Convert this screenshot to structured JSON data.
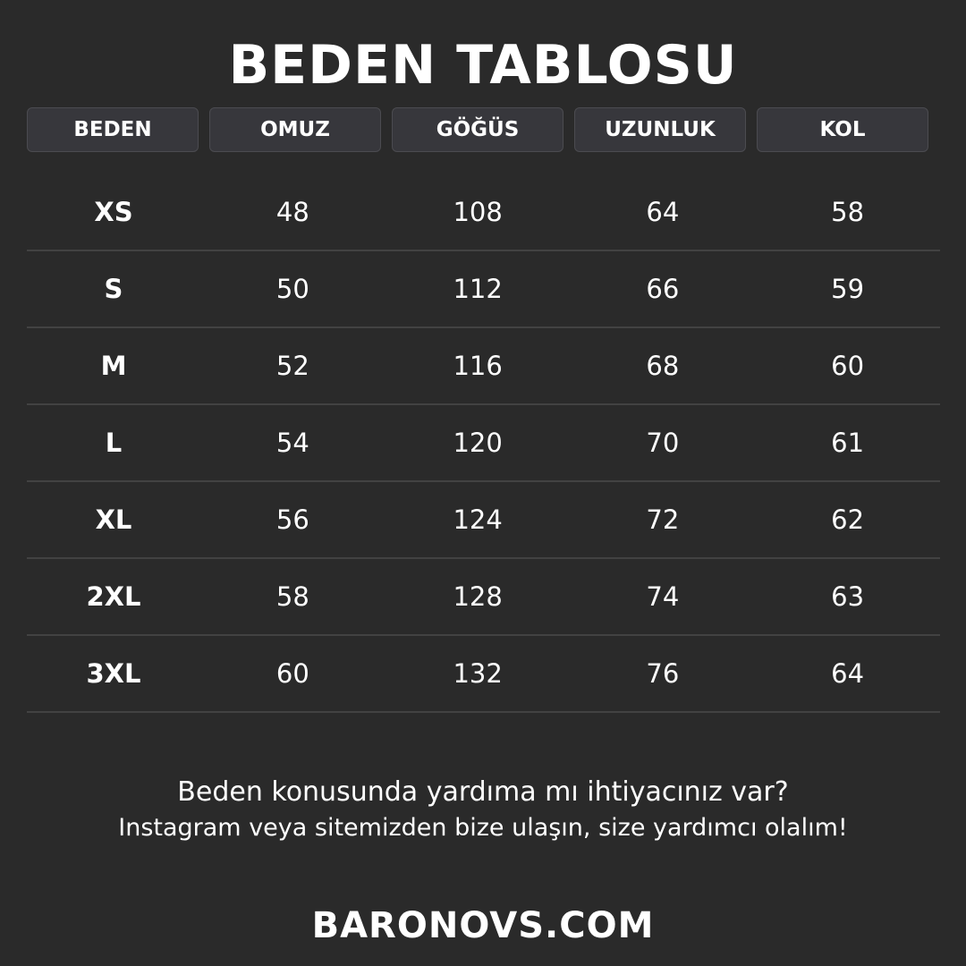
{
  "title": "BEDEN TABLOSU",
  "columns": [
    "BEDEN",
    "OMUZ",
    "GÖĞÜS",
    "UZUNLUK",
    "KOL"
  ],
  "rows": [
    [
      "XS",
      "48",
      "108",
      "64",
      "58"
    ],
    [
      "S",
      "50",
      "112",
      "66",
      "59"
    ],
    [
      "M",
      "52",
      "116",
      "68",
      "60"
    ],
    [
      "L",
      "54",
      "120",
      "70",
      "61"
    ],
    [
      "XL",
      "56",
      "124",
      "72",
      "62"
    ],
    [
      "2XL",
      "58",
      "128",
      "74",
      "63"
    ],
    [
      "3XL",
      "60",
      "132",
      "76",
      "64"
    ]
  ],
  "help": {
    "line1": "Beden konusunda yardıma mı ihtiyacınız var?",
    "line2": "Instagram veya sitemizden bize ulaşın, size yardımcı olalım!"
  },
  "website": "BARONOVS.COM",
  "colors": {
    "background": "#2a2a2a",
    "header_cell": "#37373c",
    "text": "#ffffff"
  }
}
